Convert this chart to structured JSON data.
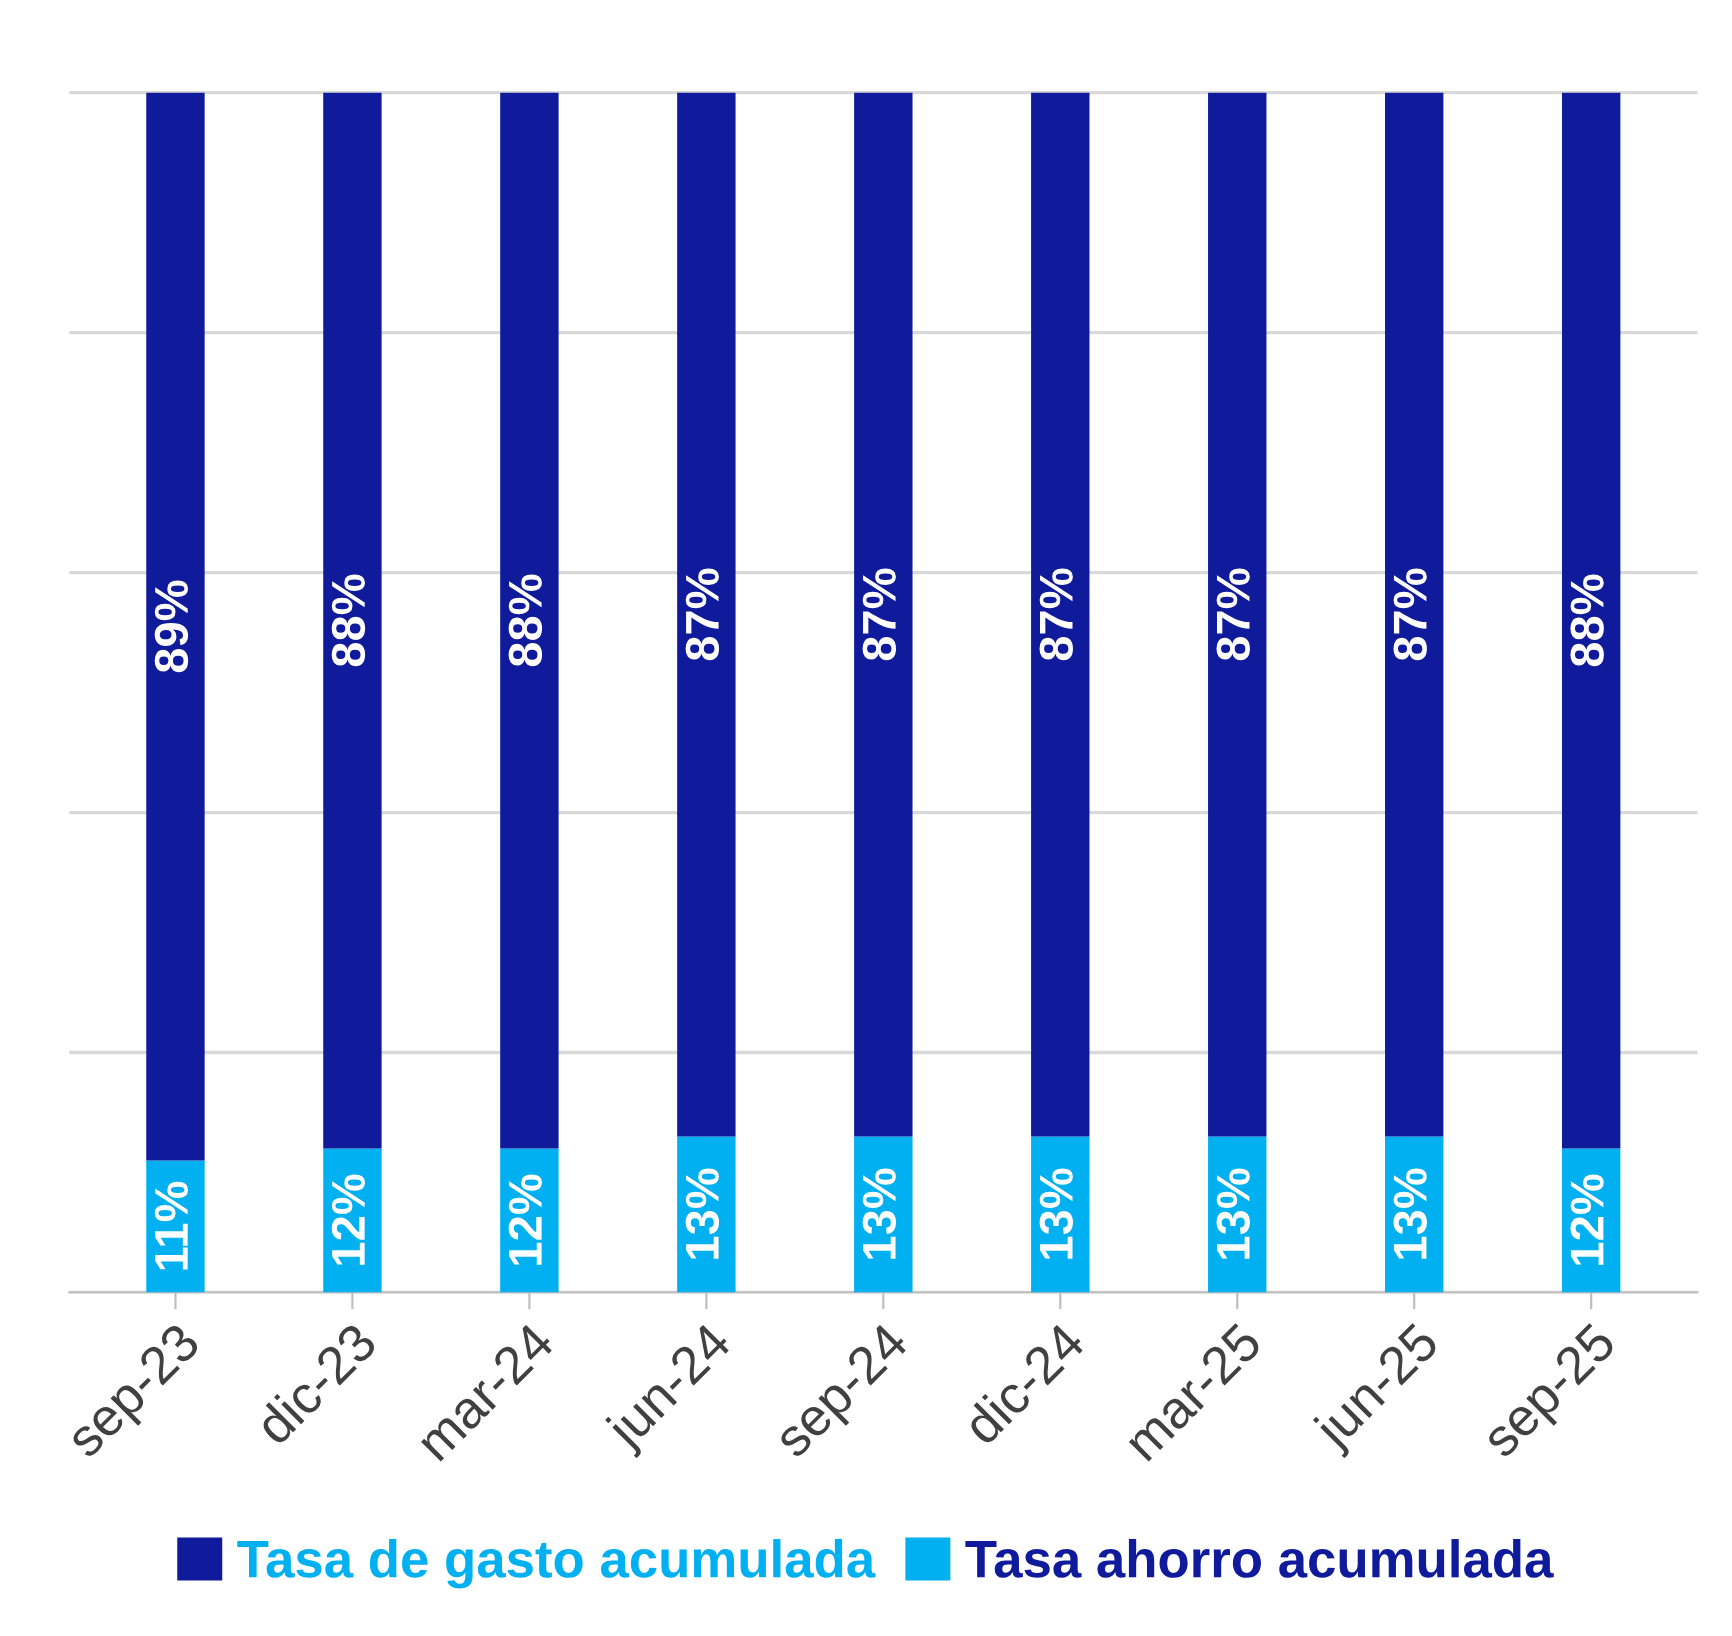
{
  "chart_data": {
    "type": "bar",
    "stacked": true,
    "categories": [
      "sep-23",
      "dic-23",
      "mar-24",
      "jun-24",
      "sep-24",
      "dic-24",
      "mar-25",
      "jun-25",
      "sep-25"
    ],
    "series": [
      {
        "name": "Tasa ahorro acumulada",
        "color": "#00b0f0",
        "values": [
          11,
          12,
          12,
          13,
          13,
          13,
          13,
          13,
          12
        ],
        "value_labels": [
          "11%",
          "12%",
          "12%",
          "13%",
          "13%",
          "13%",
          "13%",
          "13%",
          "12%"
        ]
      },
      {
        "name": "Tasa de gasto acumulada",
        "color": "#0f1b9b",
        "values": [
          89,
          88,
          88,
          87,
          87,
          87,
          87,
          87,
          88
        ],
        "value_labels": [
          "89%",
          "88%",
          "88%",
          "87%",
          "87%",
          "87%",
          "87%",
          "87%",
          "88%"
        ]
      }
    ],
    "grid": "y",
    "legend": "bottom",
    "tick_labels": "x"
  }
}
